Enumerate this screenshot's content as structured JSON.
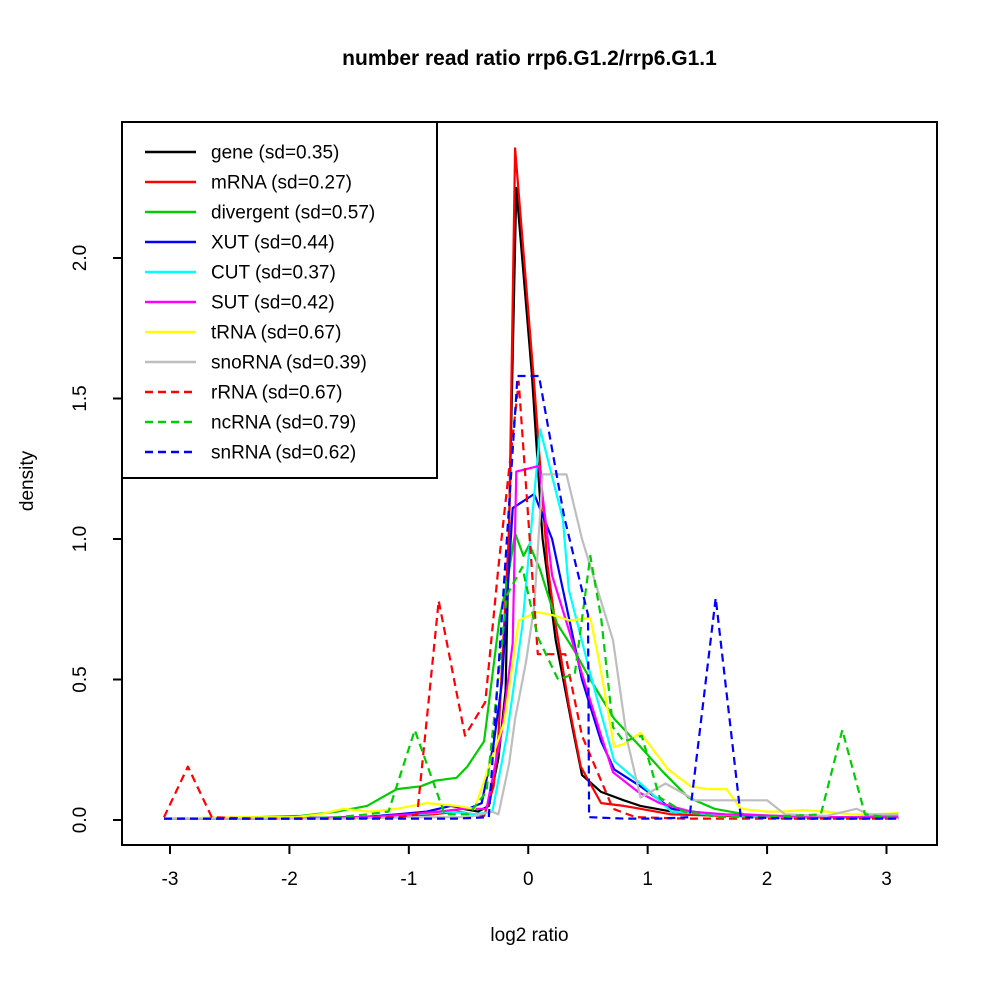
{
  "chart_data": {
    "type": "line",
    "title": "number read ratio rrp6.G1.2/rrp6.G1.1",
    "xlabel": "log2 ratio",
    "ylabel": "density",
    "xlim": [
      -3.402,
      3.423
    ],
    "ylim": [
      -0.089,
      2.484
    ],
    "grid": false,
    "legend_position": "top-left",
    "x_ticks": [
      -3,
      -2,
      -1,
      0,
      1,
      2,
      3
    ],
    "y_ticks": [
      0,
      0.5,
      1,
      1.5,
      2
    ],
    "y_tick_labels": [
      "0.0",
      "0.5",
      "1.0",
      "1.5",
      "2.0"
    ],
    "series": [
      {
        "id": "gene",
        "label": "gene (sd=0.35)",
        "sd": 0.35,
        "color": "#000000",
        "dash": "solid",
        "points": [
          [
            -3.05,
            0.005
          ],
          [
            -2.2,
            0.005
          ],
          [
            -1.5,
            0.01
          ],
          [
            -1.1,
            0.01
          ],
          [
            -0.9,
            0.02
          ],
          [
            -0.7,
            0.03
          ],
          [
            -0.55,
            0.04
          ],
          [
            -0.42,
            0.03
          ],
          [
            -0.33,
            0.05
          ],
          [
            -0.25,
            0.22
          ],
          [
            -0.19,
            0.46
          ],
          [
            -0.1,
            2.25
          ],
          [
            0.03,
            1.59
          ],
          [
            0.12,
            1.0
          ],
          [
            0.23,
            0.64
          ],
          [
            0.37,
            0.33
          ],
          [
            0.45,
            0.16
          ],
          [
            0.61,
            0.1
          ],
          [
            0.8,
            0.07
          ],
          [
            0.94,
            0.05
          ],
          [
            1.2,
            0.03
          ],
          [
            1.56,
            0.02
          ],
          [
            2.1,
            0.01
          ],
          [
            2.6,
            0.01
          ],
          [
            3.1,
            0.01
          ]
        ]
      },
      {
        "id": "mRNA",
        "label": "mRNA (sd=0.27)",
        "sd": 0.27,
        "color": "#FF0000",
        "dash": "solid",
        "points": [
          [
            -3.05,
            0.005
          ],
          [
            -2.2,
            0.005
          ],
          [
            -1.4,
            0.01
          ],
          [
            -1.05,
            0.015
          ],
          [
            -0.8,
            0.02
          ],
          [
            -0.6,
            0.03
          ],
          [
            -0.45,
            0.02
          ],
          [
            -0.37,
            0.015
          ],
          [
            -0.29,
            0.12
          ],
          [
            -0.25,
            0.3
          ],
          [
            -0.16,
            1.03
          ],
          [
            -0.11,
            2.39
          ],
          [
            0.05,
            1.55
          ],
          [
            0.16,
            0.91
          ],
          [
            0.22,
            0.72
          ],
          [
            0.34,
            0.41
          ],
          [
            0.44,
            0.19
          ],
          [
            0.61,
            0.06
          ],
          [
            0.8,
            0.05
          ],
          [
            0.94,
            0.04
          ],
          [
            1.2,
            0.02
          ],
          [
            1.6,
            0.015
          ],
          [
            2.2,
            0.01
          ],
          [
            3.1,
            0.01
          ]
        ]
      },
      {
        "id": "divergent",
        "label": "divergent (sd=0.57)",
        "sd": 0.57,
        "color": "#00CD00",
        "dash": "solid",
        "points": [
          [
            -3.05,
            0.005
          ],
          [
            -2.3,
            0.01
          ],
          [
            -1.9,
            0.015
          ],
          [
            -1.6,
            0.03
          ],
          [
            -1.35,
            0.05
          ],
          [
            -1.1,
            0.11
          ],
          [
            -0.9,
            0.12
          ],
          [
            -0.78,
            0.14
          ],
          [
            -0.6,
            0.15
          ],
          [
            -0.51,
            0.19
          ],
          [
            -0.37,
            0.28
          ],
          [
            -0.24,
            0.72
          ],
          [
            -0.18,
            0.84
          ],
          [
            -0.11,
            1.02
          ],
          [
            -0.04,
            0.94
          ],
          [
            0.01,
            0.98
          ],
          [
            0.1,
            0.89
          ],
          [
            0.24,
            0.7
          ],
          [
            0.39,
            0.6
          ],
          [
            0.52,
            0.5
          ],
          [
            0.72,
            0.36
          ],
          [
            0.94,
            0.26
          ],
          [
            1.13,
            0.17
          ],
          [
            1.34,
            0.08
          ],
          [
            1.56,
            0.04
          ],
          [
            1.82,
            0.02
          ],
          [
            2.3,
            0.01
          ],
          [
            2.7,
            0.01
          ],
          [
            3.1,
            0.015
          ]
        ]
      },
      {
        "id": "XUT",
        "label": "XUT (sd=0.44)",
        "sd": 0.44,
        "color": "#0000FF",
        "dash": "solid",
        "points": [
          [
            -3.05,
            0.005
          ],
          [
            -2.2,
            0.005
          ],
          [
            -1.4,
            0.01
          ],
          [
            -1.1,
            0.02
          ],
          [
            -0.85,
            0.03
          ],
          [
            -0.65,
            0.05
          ],
          [
            -0.5,
            0.04
          ],
          [
            -0.39,
            0.06
          ],
          [
            -0.29,
            0.27
          ],
          [
            -0.22,
            0.49
          ],
          [
            -0.13,
            1.11
          ],
          [
            0.05,
            1.16
          ],
          [
            0.2,
            1.0
          ],
          [
            0.3,
            0.8
          ],
          [
            0.45,
            0.5
          ],
          [
            0.61,
            0.28
          ],
          [
            0.72,
            0.18
          ],
          [
            0.94,
            0.12
          ],
          [
            1.2,
            0.04
          ],
          [
            1.55,
            0.02
          ],
          [
            2.1,
            0.01
          ],
          [
            3.1,
            0.01
          ]
        ]
      },
      {
        "id": "CUT",
        "label": "CUT (sd=0.37)",
        "sd": 0.37,
        "color": "#00FFFF",
        "dash": "solid",
        "points": [
          [
            -3.05,
            0.005
          ],
          [
            -2.2,
            0.005
          ],
          [
            -1.3,
            0.01
          ],
          [
            -0.95,
            0.02
          ],
          [
            -0.65,
            0.03
          ],
          [
            -0.45,
            0.02
          ],
          [
            -0.3,
            0.03
          ],
          [
            -0.18,
            0.3
          ],
          [
            -0.05,
            0.69
          ],
          [
            0.1,
            1.39
          ],
          [
            0.29,
            1.07
          ],
          [
            0.34,
            0.82
          ],
          [
            0.52,
            0.52
          ],
          [
            0.72,
            0.21
          ],
          [
            0.94,
            0.13
          ],
          [
            1.2,
            0.03
          ],
          [
            1.55,
            0.02
          ],
          [
            2.1,
            0.01
          ],
          [
            3.1,
            0.01
          ]
        ]
      },
      {
        "id": "SUT",
        "label": "SUT (sd=0.42)",
        "sd": 0.42,
        "color": "#FF00FF",
        "dash": "solid",
        "points": [
          [
            -3.05,
            0.005
          ],
          [
            -2.2,
            0.005
          ],
          [
            -1.35,
            0.01
          ],
          [
            -1.0,
            0.02
          ],
          [
            -0.75,
            0.03
          ],
          [
            -0.55,
            0.04
          ],
          [
            -0.35,
            0.04
          ],
          [
            -0.22,
            0.32
          ],
          [
            -0.13,
            0.63
          ],
          [
            -0.1,
            1.24
          ],
          [
            0.09,
            1.26
          ],
          [
            0.2,
            0.87
          ],
          [
            0.33,
            0.69
          ],
          [
            0.45,
            0.52
          ],
          [
            0.61,
            0.3
          ],
          [
            0.71,
            0.17
          ],
          [
            0.92,
            0.1
          ],
          [
            1.1,
            0.06
          ],
          [
            1.36,
            0.03
          ],
          [
            1.65,
            0.02
          ],
          [
            2.1,
            0.015
          ],
          [
            2.6,
            0.01
          ],
          [
            3.1,
            0.01
          ]
        ]
      },
      {
        "id": "tRNA",
        "label": "tRNA (sd=0.67)",
        "sd": 0.67,
        "color": "#FFFF00",
        "dash": "solid",
        "points": [
          [
            -3.05,
            0.005
          ],
          [
            -2.4,
            0.01
          ],
          [
            -1.95,
            0.01
          ],
          [
            -1.75,
            0.02
          ],
          [
            -1.55,
            0.04
          ],
          [
            -1.33,
            0.03
          ],
          [
            -1.1,
            0.04
          ],
          [
            -0.85,
            0.06
          ],
          [
            -0.6,
            0.05
          ],
          [
            -0.45,
            0.04
          ],
          [
            -0.2,
            0.35
          ],
          [
            -0.08,
            0.71
          ],
          [
            0.07,
            0.74
          ],
          [
            0.2,
            0.73
          ],
          [
            0.35,
            0.71
          ],
          [
            0.52,
            0.72
          ],
          [
            0.6,
            0.55
          ],
          [
            0.72,
            0.26
          ],
          [
            0.8,
            0.27
          ],
          [
            0.94,
            0.31
          ],
          [
            1.17,
            0.18
          ],
          [
            1.36,
            0.12
          ],
          [
            1.5,
            0.11
          ],
          [
            1.66,
            0.11
          ],
          [
            1.78,
            0.04
          ],
          [
            2.0,
            0.03
          ],
          [
            2.12,
            0.03
          ],
          [
            2.3,
            0.035
          ],
          [
            2.5,
            0.03
          ],
          [
            2.7,
            0.02
          ],
          [
            2.9,
            0.02
          ],
          [
            3.1,
            0.025
          ]
        ]
      },
      {
        "id": "snoRNA",
        "label": "snoRNA (sd=0.39)",
        "sd": 0.39,
        "color": "#BEBEBE",
        "dash": "solid",
        "points": [
          [
            -3.05,
            0.005
          ],
          [
            -2.2,
            0.005
          ],
          [
            -1.5,
            0.005
          ],
          [
            -1.0,
            0.01
          ],
          [
            -0.7,
            0.01
          ],
          [
            -0.5,
            0.01
          ],
          [
            -0.3,
            0.03
          ],
          [
            -0.25,
            0.02
          ],
          [
            -0.16,
            0.2
          ],
          [
            -0.11,
            0.36
          ],
          [
            -0.02,
            0.56
          ],
          [
            0.05,
            0.76
          ],
          [
            0.12,
            1.23
          ],
          [
            0.32,
            1.23
          ],
          [
            0.45,
            1.0
          ],
          [
            0.71,
            0.64
          ],
          [
            0.83,
            0.28
          ],
          [
            0.94,
            0.08
          ],
          [
            1.15,
            0.13
          ],
          [
            1.4,
            0.07
          ],
          [
            1.75,
            0.07
          ],
          [
            2.0,
            0.07
          ],
          [
            2.15,
            0.02
          ],
          [
            2.5,
            0.015
          ],
          [
            2.75,
            0.04
          ],
          [
            2.85,
            0.02
          ],
          [
            3.1,
            0.02
          ]
        ]
      },
      {
        "id": "rRNA",
        "label": "rRNA (sd=0.67)",
        "sd": 0.67,
        "color": "#FF0000",
        "dash": "dashed",
        "points": [
          [
            -3.05,
            0.01
          ],
          [
            -2.85,
            0.19
          ],
          [
            -2.65,
            0.01
          ],
          [
            -2.3,
            0.005
          ],
          [
            -1.9,
            0.005
          ],
          [
            -1.5,
            0.005
          ],
          [
            -1.1,
            0.01
          ],
          [
            -0.93,
            0.02
          ],
          [
            -0.75,
            0.78
          ],
          [
            -0.53,
            0.3
          ],
          [
            -0.36,
            0.42
          ],
          [
            -0.25,
            0.9
          ],
          [
            -0.08,
            1.56
          ],
          [
            0.08,
            0.59
          ],
          [
            0.31,
            0.59
          ],
          [
            0.45,
            0.3
          ],
          [
            0.58,
            0.17
          ],
          [
            0.71,
            0.04
          ],
          [
            0.9,
            0.01
          ],
          [
            1.3,
            0.005
          ],
          [
            2.1,
            0.005
          ],
          [
            3.1,
            0.005
          ]
        ]
      },
      {
        "id": "ncRNA",
        "label": "ncRNA (sd=0.79)",
        "sd": 0.79,
        "color": "#00CD00",
        "dash": "dashed",
        "points": [
          [
            -3.05,
            0.005
          ],
          [
            -2.5,
            0.005
          ],
          [
            -2.0,
            0.005
          ],
          [
            -1.6,
            0.01
          ],
          [
            -1.35,
            0.02
          ],
          [
            -1.17,
            0.03
          ],
          [
            -0.95,
            0.32
          ],
          [
            -0.7,
            0.02
          ],
          [
            -0.5,
            0.02
          ],
          [
            -0.35,
            0.1
          ],
          [
            -0.18,
            0.8
          ],
          [
            -0.05,
            0.9
          ],
          [
            0.08,
            0.65
          ],
          [
            0.25,
            0.5
          ],
          [
            0.39,
            0.52
          ],
          [
            0.52,
            0.94
          ],
          [
            0.61,
            0.72
          ],
          [
            0.71,
            0.33
          ],
          [
            0.8,
            0.28
          ],
          [
            0.95,
            0.3
          ],
          [
            1.1,
            0.08
          ],
          [
            1.3,
            0.03
          ],
          [
            1.6,
            0.01
          ],
          [
            2.0,
            0.01
          ],
          [
            2.2,
            0.015
          ],
          [
            2.45,
            0.02
          ],
          [
            2.63,
            0.32
          ],
          [
            2.82,
            0.02
          ],
          [
            3.1,
            0.005
          ]
        ]
      },
      {
        "id": "snRNA",
        "label": "snRNA (sd=0.62)",
        "sd": 0.62,
        "color": "#0000FF",
        "dash": "dashed",
        "points": [
          [
            -3.05,
            0.005
          ],
          [
            -2.5,
            0.005
          ],
          [
            -2.0,
            0.005
          ],
          [
            -1.5,
            0.005
          ],
          [
            -1.0,
            0.005
          ],
          [
            -0.6,
            0.005
          ],
          [
            -0.33,
            0.01
          ],
          [
            -0.09,
            1.58
          ],
          [
            0.09,
            1.58
          ],
          [
            0.3,
            1.08
          ],
          [
            0.5,
            0.73
          ],
          [
            0.51,
            0.01
          ],
          [
            0.8,
            0.005
          ],
          [
            1.1,
            0.005
          ],
          [
            1.35,
            0.01
          ],
          [
            1.57,
            0.79
          ],
          [
            1.78,
            0.01
          ],
          [
            2.2,
            0.005
          ],
          [
            2.6,
            0.005
          ],
          [
            3.1,
            0.005
          ]
        ]
      }
    ]
  }
}
